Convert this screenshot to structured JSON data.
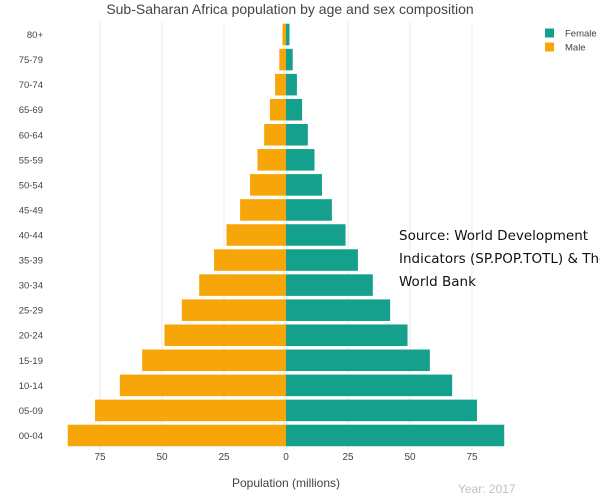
{
  "chart_data": {
    "type": "bar",
    "orientation": "horizontal",
    "title": "Sub-Saharan Africa population by age and sex composition",
    "xlabel": "Population (millions)",
    "ylabel": "",
    "categories": [
      "00-04",
      "05-09",
      "10-14",
      "15-19",
      "20-24",
      "25-29",
      "30-34",
      "35-39",
      "40-44",
      "45-49",
      "50-54",
      "55-59",
      "60-64",
      "65-69",
      "70-74",
      "75-79",
      "80+"
    ],
    "series": [
      {
        "name": "Female",
        "color": "#14a08c",
        "values": [
          88,
          77,
          67,
          58,
          49,
          42,
          35,
          29,
          24,
          18.5,
          14.5,
          11.5,
          8.8,
          6.5,
          4.4,
          2.7,
          1.4
        ]
      },
      {
        "name": "Male",
        "color": "#f7a60a",
        "values": [
          88,
          77,
          67,
          58,
          49,
          42,
          35,
          29,
          24,
          18.5,
          14.5,
          11.5,
          8.8,
          6.5,
          4.4,
          2.7,
          1.4
        ]
      }
    ],
    "xlim": [
      -90,
      90
    ],
    "xticks": [
      -75,
      -50,
      -25,
      0,
      25,
      50,
      75
    ],
    "xtick_labels": [
      "75",
      "50",
      "25",
      "0",
      "25",
      "50",
      "75"
    ],
    "grid": true,
    "legend_position": "top-right",
    "annotation_lines": [
      "Source: World Development",
      "Indicators (SP.POP.TOTL) & The",
      "World Bank"
    ],
    "year_label": "Year: 2017"
  }
}
